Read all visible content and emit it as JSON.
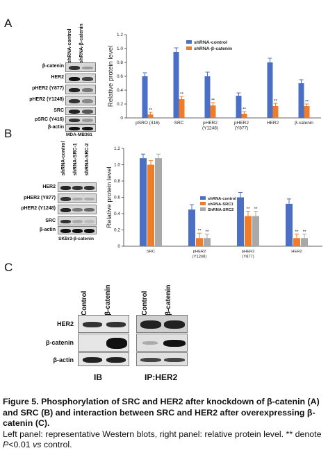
{
  "panelA": {
    "letter": "A",
    "lanes": [
      "shRNA-control",
      "shRNA-β-catenin"
    ],
    "bands": [
      "β-catenin",
      "HER2",
      "pHER2 (Y877)",
      "pHER2 (Y1248)",
      "SRC",
      "pSRC (Y416)",
      "β-actin"
    ],
    "cell_line": "MDA-MB361"
  },
  "panelB": {
    "letter": "B",
    "lanes": [
      "shRNA-control",
      "shRNA-SRC-1",
      "shRNA-SRC-2"
    ],
    "bands": [
      "HER2",
      "pHER2 (Y877)",
      "pHER2 (Y1248)",
      "SRC",
      "β-actin"
    ],
    "cell_line": "SKBr3-β-catenin"
  },
  "panelC": {
    "letter": "C",
    "lanes": [
      "Control",
      "β-catenin"
    ],
    "bands": [
      "HER2",
      "β-catenin",
      "β-actin"
    ],
    "ib_label": "IB",
    "ip_label": "IP:HER2"
  },
  "chart_data": [
    {
      "type": "bar",
      "ylabel": "Relative protein level",
      "ylim": [
        0,
        1.2
      ],
      "yticks": [
        "0",
        "0.2",
        "0.4",
        "0.6",
        "0.8",
        "1.0",
        "1.2"
      ],
      "categories": [
        [
          "pSRO (416)"
        ],
        [
          "SRC"
        ],
        [
          "pHER2",
          "(Y1248)"
        ],
        [
          "pHER2",
          "(Y877)"
        ],
        [
          "HER2"
        ],
        [
          "β-catenin"
        ]
      ],
      "series": [
        {
          "name": "shRNA-control",
          "values": [
            0.6,
            0.95,
            0.6,
            0.32,
            0.8,
            0.5
          ],
          "errors": [
            0.05,
            0.06,
            0.06,
            0.04,
            0.06,
            0.05
          ],
          "sig": [
            "",
            "",
            "",
            "",
            "",
            ""
          ]
        },
        {
          "name": "shRNA-β-catenin",
          "values": [
            0.05,
            0.27,
            0.18,
            0.06,
            0.17,
            0.17
          ],
          "errors": [
            0.03,
            0.04,
            0.04,
            0.03,
            0.04,
            0.03
          ],
          "sig": [
            "**",
            "**",
            "**",
            "**",
            "**",
            "**"
          ]
        }
      ],
      "colors": [
        "#4a6fc4",
        "#ee7d2b"
      ],
      "legend_position": "top-right"
    },
    {
      "type": "bar",
      "ylabel": "Relative protein level",
      "ylim": [
        0,
        1.2
      ],
      "yticks": [
        "0",
        "0.2",
        "0.4",
        "0.6",
        "0.8",
        "1.0",
        "1.2"
      ],
      "categories": [
        [
          "SRC"
        ],
        [
          "pHER2",
          "(Y1248)"
        ],
        [
          "pHER2",
          "(Y877)"
        ],
        [
          "HER2"
        ]
      ],
      "series": [
        {
          "name": "shRNA-control",
          "values": [
            1.08,
            0.45,
            0.6,
            0.52
          ],
          "errors": [
            0.05,
            0.06,
            0.06,
            0.06
          ],
          "sig": [
            "",
            "",
            "",
            ""
          ]
        },
        {
          "name": "shRNA-SRC1",
          "values": [
            1.0,
            0.1,
            0.37,
            0.1
          ],
          "errors": [
            0.05,
            0.06,
            0.06,
            0.05
          ],
          "sig": [
            "",
            "**",
            "**",
            "**"
          ]
        },
        {
          "name": "ShRNA-SRC2",
          "values": [
            1.08,
            0.1,
            0.37,
            0.1
          ],
          "errors": [
            0.05,
            0.05,
            0.06,
            0.05
          ],
          "sig": [
            "",
            "**",
            "**",
            "**"
          ]
        }
      ],
      "colors": [
        "#4a6fc4",
        "#ee7d2b",
        "#a9a9a9"
      ],
      "legend_position": "top-right"
    }
  ],
  "caption": {
    "title_prefix": "Figure 5. ",
    "title_body": "Phosphorylation of SRC and HER2 after knockdown of β-catenin (A) and SRC (B) and interaction between SRC and HER2 after overexpressing β-catenin (C).",
    "line2_a": "Left panel: representative Western blots, right panel: relative protein level. ** denote ",
    "line2_p": "P",
    "line2_b": "<0.01 ",
    "line2_vs": "vs",
    "line2_c": " control."
  }
}
